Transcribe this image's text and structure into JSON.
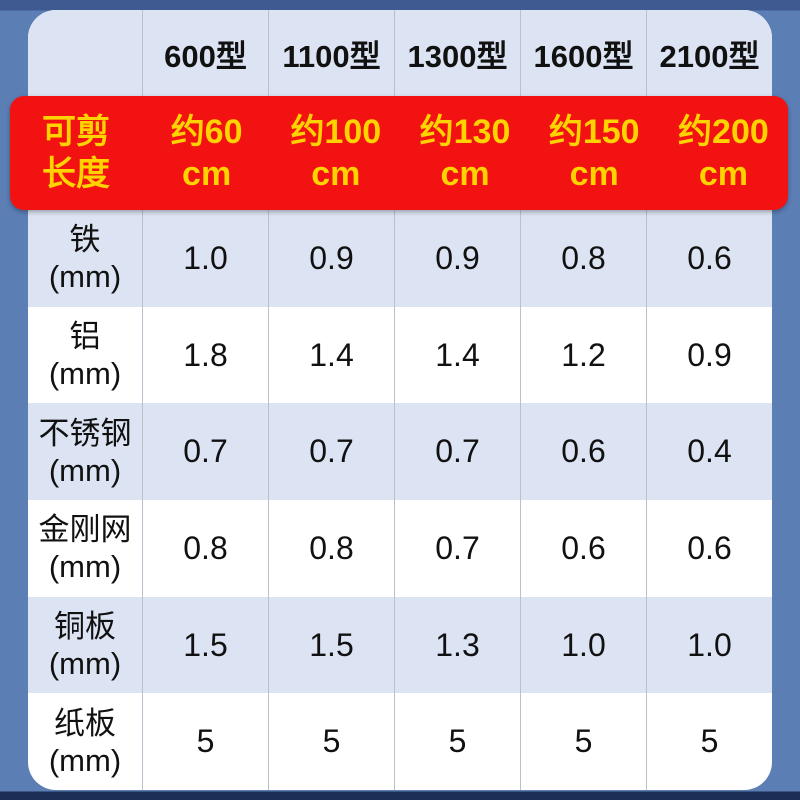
{
  "colors": {
    "page_bg": "#5b7eb5",
    "page_top_band": "#3e5a90",
    "page_bottom_band": "#1c2e54",
    "card_bg": "#ffffff",
    "stripe_bg": "#dce3f2",
    "divider": "#b9c0cc",
    "highlight_bg": "#f21212",
    "highlight_text": "#ffd300",
    "text": "#111111"
  },
  "chart_data": {
    "type": "table",
    "columns": [
      "",
      "600型",
      "1100型",
      "1300型",
      "1600型",
      "2100型"
    ],
    "rows": [
      [
        "可剪长度",
        "约60cm",
        "约100cm",
        "约130cm",
        "约150cm",
        "约200cm"
      ],
      [
        "铁(mm)",
        "1.0",
        "0.9",
        "0.9",
        "0.8",
        "0.6"
      ],
      [
        "铝(mm)",
        "1.8",
        "1.4",
        "1.4",
        "1.2",
        "0.9"
      ],
      [
        "不锈钢(mm)",
        "0.7",
        "0.7",
        "0.7",
        "0.6",
        "0.4"
      ],
      [
        "金刚网(mm)",
        "0.8",
        "0.8",
        "0.7",
        "0.6",
        "0.6"
      ],
      [
        "铜板(mm)",
        "1.5",
        "1.5",
        "1.3",
        "1.0",
        "1.0"
      ],
      [
        "纸板(mm)",
        "5",
        "5",
        "5",
        "5",
        "5"
      ]
    ],
    "layout": {
      "highlight_row_index": 0,
      "stripe_rows": "alternating",
      "grid": "vertical-dividers-only"
    }
  },
  "header": {
    "corner": "",
    "models": [
      "600型",
      "1100型",
      "1300型",
      "1600型",
      "2100型"
    ]
  },
  "highlight": {
    "label1": "可剪",
    "label2": "长度",
    "values": [
      {
        "l1": "约60",
        "l2": "cm"
      },
      {
        "l1": "约100",
        "l2": "cm"
      },
      {
        "l1": "约130",
        "l2": "cm"
      },
      {
        "l1": "约150",
        "l2": "cm"
      },
      {
        "l1": "约200",
        "l2": "cm"
      }
    ]
  },
  "materials": [
    {
      "name": "铁",
      "unit": "(mm)",
      "values": [
        "1.0",
        "0.9",
        "0.9",
        "0.8",
        "0.6"
      ]
    },
    {
      "name": "铝",
      "unit": "(mm)",
      "values": [
        "1.8",
        "1.4",
        "1.4",
        "1.2",
        "0.9"
      ]
    },
    {
      "name": "不锈钢",
      "unit": "(mm)",
      "values": [
        "0.7",
        "0.7",
        "0.7",
        "0.6",
        "0.4"
      ]
    },
    {
      "name": "金刚网",
      "unit": "(mm)",
      "values": [
        "0.8",
        "0.8",
        "0.7",
        "0.6",
        "0.6"
      ]
    },
    {
      "name": "铜板",
      "unit": "(mm)",
      "values": [
        "1.5",
        "1.5",
        "1.3",
        "1.0",
        "1.0"
      ]
    },
    {
      "name": "纸板",
      "unit": "(mm)",
      "values": [
        "5",
        "5",
        "5",
        "5",
        "5"
      ]
    }
  ]
}
